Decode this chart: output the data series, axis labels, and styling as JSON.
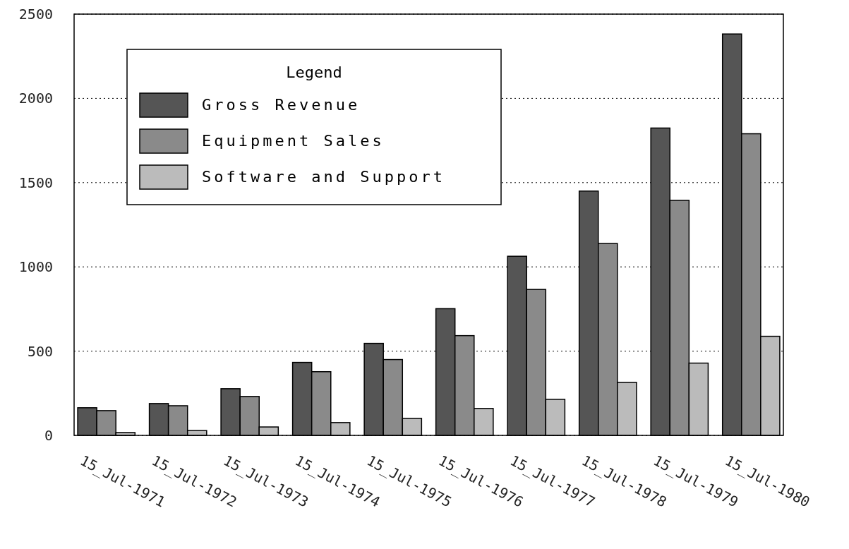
{
  "chart_data": {
    "type": "bar",
    "categories": [
      "15_Jul-1971",
      "15_Jul-1972",
      "15_Jul-1973",
      "15_Jul-1974",
      "15_Jul-1975",
      "15_Jul-1976",
      "15_Jul-1977",
      "15_Jul-1978",
      "15_Jul-1979",
      "15_Jul-1980"
    ],
    "series": [
      {
        "name": "Gross Revenue",
        "color": "#555555",
        "values": [
          164,
          189,
          277,
          433,
          546,
          752,
          1063,
          1450,
          1824,
          2382
        ]
      },
      {
        "name": "Equipment Sales",
        "color": "#8a8a8a",
        "values": [
          147,
          176,
          231,
          378,
          450,
          592,
          866,
          1139,
          1395,
          1790
        ]
      },
      {
        "name": "Software and Support",
        "color": "#bbbbbb",
        "values": [
          17,
          29,
          50,
          76,
          101,
          160,
          214,
          315,
          429,
          588
        ]
      }
    ],
    "ylim": [
      0,
      2500
    ],
    "yticks": [
      0,
      500,
      1000,
      1500,
      2000,
      2500
    ],
    "grid": "y",
    "legend": "top left",
    "legend_title": "Legend"
  }
}
